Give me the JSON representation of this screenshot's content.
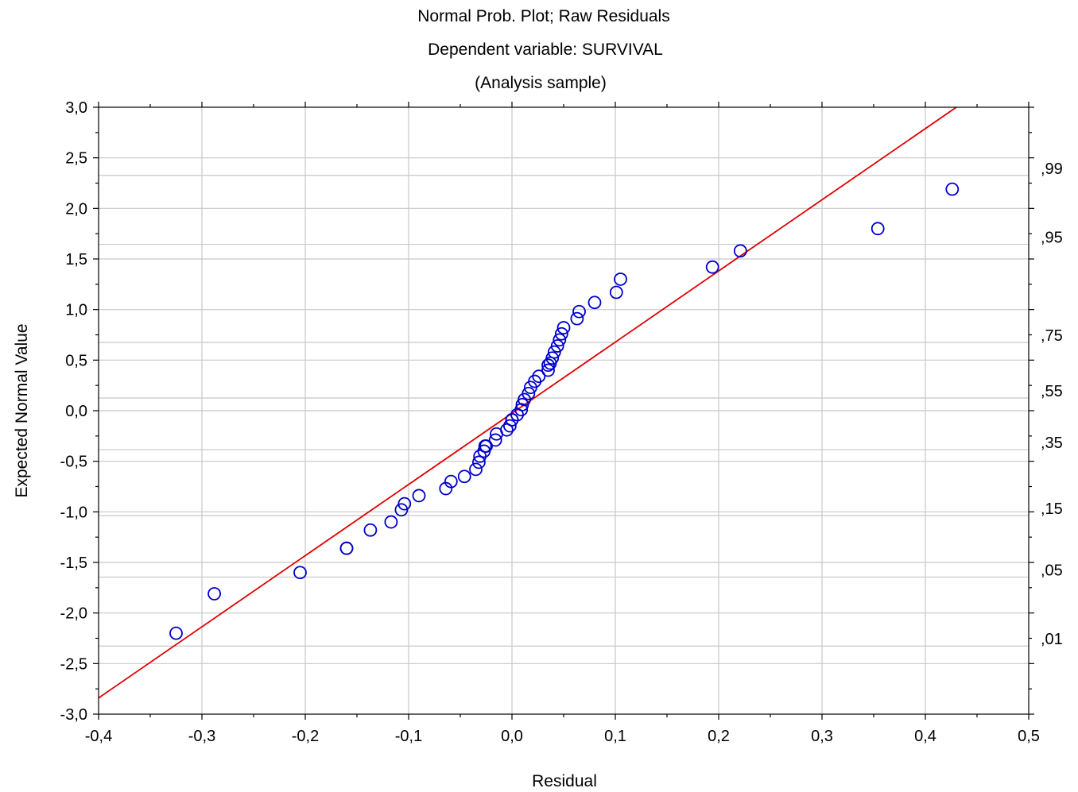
{
  "chart_data": {
    "type": "scatter",
    "title": [
      "Normal Prob. Plot; Raw Residuals",
      "Dependent variable: SURVIVAL",
      "(Analysis sample)"
    ],
    "xlabel": "Residual",
    "ylabel": "Expected Normal Value",
    "xlim": [
      -0.4,
      0.5
    ],
    "ylim": [
      -3.0,
      3.0
    ],
    "x_ticks": [
      -0.4,
      -0.3,
      -0.2,
      -0.1,
      0.0,
      0.1,
      0.2,
      0.3,
      0.4,
      0.5
    ],
    "x_tick_labels": [
      "-0,4",
      "-0,3",
      "-0,2",
      "-0,1",
      "0,0",
      "0,1",
      "0,2",
      "0,3",
      "0,4",
      "0,5"
    ],
    "y_ticks": [
      -3.0,
      -2.5,
      -2.0,
      -1.5,
      -1.0,
      -0.5,
      0.0,
      0.5,
      1.0,
      1.5,
      2.0,
      2.5,
      3.0
    ],
    "y_tick_labels": [
      "-3,0",
      "-2,5",
      "-2,0",
      "-1,5",
      "-1,0",
      "-0,5",
      "0,0",
      "0,5",
      "1,0",
      "1,5",
      "2,0",
      "2,5",
      "3,0"
    ],
    "right_axis": {
      "labels": [
        ",01",
        ",05",
        ",15",
        ",35",
        ",55",
        ",75",
        ",95",
        ",99"
      ],
      "probabilities": [
        0.01,
        0.05,
        0.15,
        0.35,
        0.55,
        0.75,
        0.95,
        0.99
      ]
    },
    "grid": true,
    "colors": {
      "points": "#0000cc",
      "line": "#e00000",
      "grid": "#c8c8c8",
      "axis": "#000000"
    },
    "fit_line": {
      "x": [
        -0.4,
        0.43
      ],
      "y": [
        -2.84,
        3.0
      ]
    },
    "points": {
      "x": [
        -0.325,
        -0.288,
        -0.205,
        -0.16,
        -0.16,
        -0.137,
        -0.117,
        -0.107,
        -0.104,
        -0.09,
        -0.064,
        -0.059,
        -0.046,
        -0.035,
        -0.032,
        -0.031,
        -0.027,
        -0.026,
        -0.025,
        -0.016,
        -0.015,
        -0.005,
        -0.002,
        0.0,
        0.0,
        0.005,
        0.009,
        0.01,
        0.012,
        0.016,
        0.018,
        0.022,
        0.026,
        0.035,
        0.035,
        0.037,
        0.039,
        0.041,
        0.044,
        0.046,
        0.048,
        0.05,
        0.063,
        0.065,
        0.08,
        0.101,
        0.105,
        0.194,
        0.221,
        0.354,
        0.426
      ],
      "y": [
        -2.2,
        -1.81,
        -1.6,
        -1.36,
        -1.36,
        -1.18,
        -1.1,
        -0.98,
        -0.92,
        -0.84,
        -0.77,
        -0.7,
        -0.65,
        -0.58,
        -0.51,
        -0.45,
        -0.4,
        -0.35,
        -0.35,
        -0.29,
        -0.23,
        -0.19,
        -0.15,
        -0.09,
        -0.09,
        -0.04,
        0.01,
        0.06,
        0.11,
        0.17,
        0.23,
        0.29,
        0.34,
        0.4,
        0.45,
        0.47,
        0.52,
        0.58,
        0.64,
        0.7,
        0.76,
        0.82,
        0.91,
        0.98,
        1.07,
        1.17,
        1.3,
        1.42,
        1.58,
        1.8,
        2.19
      ]
    }
  }
}
